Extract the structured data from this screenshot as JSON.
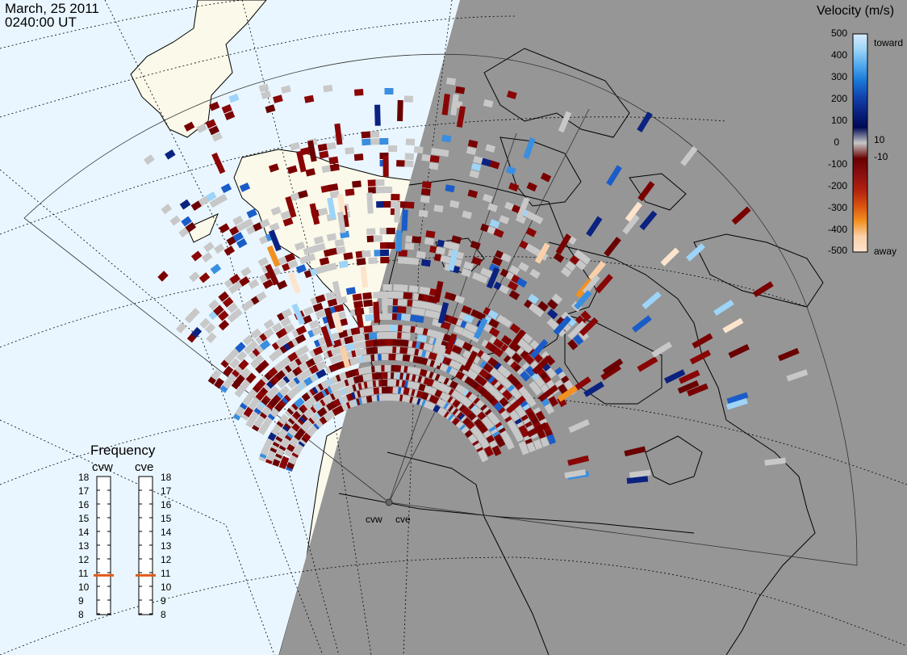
{
  "header": {
    "date": "March, 25 2011",
    "time": "0240:00 UT"
  },
  "radars": {
    "site_a": "cvw",
    "site_b": "cve"
  },
  "colorbar": {
    "title": "Velocity (m/s)",
    "ticks": [
      "500",
      "400",
      "300",
      "200",
      "100",
      "10",
      "0",
      "-10",
      "-100",
      "-200",
      "-300",
      "-400",
      "-500"
    ],
    "toward_label": "toward",
    "away_label": "away",
    "stops": [
      "#d7ecff",
      "#9dd4f7",
      "#53aaee",
      "#1a78d8",
      "#1245b0",
      "#0b2280",
      "#000a55",
      "#c8c8c8",
      "#6a0000",
      "#8a1010",
      "#b02010",
      "#d85010",
      "#f29020",
      "#fbd0a8",
      "#fde4cc"
    ]
  },
  "frequency": {
    "title": "Frequency",
    "channel_a": "cvw",
    "channel_b": "cve",
    "levels": [
      "18",
      "17",
      "16",
      "15",
      "14",
      "13",
      "12",
      "11",
      "10",
      "9",
      "8"
    ],
    "channel_a_mhz": 10.8,
    "channel_b_mhz": 10.8,
    "marker_color": "#e05a1a"
  },
  "map_colors": {
    "day_ocean": "#e9f6ff",
    "day_land": "#fbf9ea",
    "night": "#969696",
    "ground_scatter": "#c8c8c8"
  }
}
